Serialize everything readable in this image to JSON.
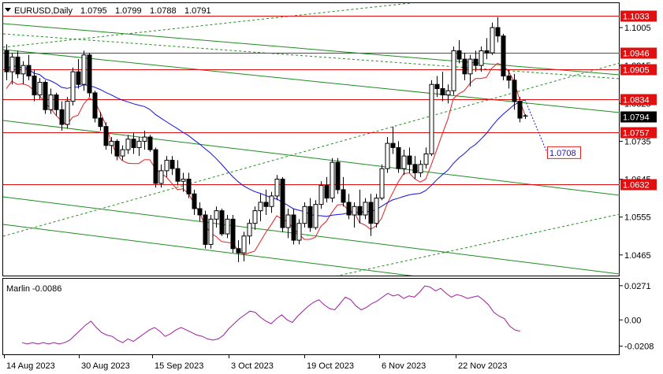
{
  "chart_data": [
    {
      "type": "candlestick",
      "title": "EURUSD,Daily",
      "ohlc": {
        "open": "1.0795",
        "high": "1.0799",
        "low": "1.0788",
        "close": "1.0791"
      },
      "ylim": [
        1.0416,
        1.1063
      ],
      "y_ticks": [
        "1.1005",
        "1.0915",
        "1.0825",
        "1.0735",
        "1.0645",
        "1.0555",
        "1.0465"
      ],
      "x_ticks": [
        "14 Aug 2023",
        "30 Aug 2023",
        "15 Sep 2023",
        "3 Oct 2023",
        "19 Oct 2023",
        "6 Nov 2023",
        "22 Nov 2023"
      ],
      "levels": [
        {
          "label": "1.1033",
          "value": 1.1033
        },
        {
          "label": "1.0946",
          "value": 1.0946
        },
        {
          "label": "1.0905",
          "value": 1.0905
        },
        {
          "label": "1.0834",
          "value": 1.0834
        },
        {
          "label": "1.0757",
          "value": 1.0757
        },
        {
          "label": "1.0632",
          "value": 1.0632
        }
      ],
      "current_price": {
        "label": "1.0794",
        "value": 1.0794
      },
      "ma_value": {
        "label": "1.0708",
        "value": 1.0708
      },
      "candles": [
        [
          1.095,
          1.0965,
          1.088,
          1.09
        ],
        [
          1.09,
          1.0945,
          1.087,
          1.0935
        ],
        [
          1.0935,
          1.095,
          1.0885,
          1.0895
        ],
        [
          1.0895,
          1.0925,
          1.087,
          1.0915
        ],
        [
          1.0915,
          1.094,
          1.088,
          1.089
        ],
        [
          1.089,
          1.0905,
          1.083,
          1.0845
        ],
        [
          1.0845,
          1.0885,
          1.0835,
          1.0875
        ],
        [
          1.0875,
          1.088,
          1.08,
          1.081
        ],
        [
          1.081,
          1.086,
          1.08,
          1.0845
        ],
        [
          1.0845,
          1.085,
          1.0795,
          1.081
        ],
        [
          1.081,
          1.083,
          1.076,
          1.0775
        ],
        [
          1.0775,
          1.084,
          1.0765,
          1.083
        ],
        [
          1.083,
          1.091,
          1.082,
          1.09
        ],
        [
          1.09,
          1.093,
          1.086,
          1.087
        ],
        [
          1.087,
          1.095,
          1.0855,
          1.094
        ],
        [
          1.094,
          1.0945,
          1.084,
          1.085
        ],
        [
          1.085,
          1.0855,
          1.078,
          1.079
        ],
        [
          1.079,
          1.0805,
          1.076,
          1.077
        ],
        [
          1.077,
          1.078,
          1.0715,
          1.0725
        ],
        [
          1.0725,
          1.0745,
          1.0705,
          1.0735
        ],
        [
          1.0735,
          1.074,
          1.069,
          1.07
        ],
        [
          1.07,
          1.0725,
          1.069,
          1.0715
        ],
        [
          1.0715,
          1.075,
          1.0705,
          1.074
        ],
        [
          1.074,
          1.0755,
          1.0705,
          1.072
        ],
        [
          1.072,
          1.0745,
          1.07,
          1.0735
        ],
        [
          1.0735,
          1.076,
          1.0715,
          1.0745
        ],
        [
          1.0745,
          1.075,
          1.071,
          1.0715
        ],
        [
          1.0715,
          1.072,
          1.0625,
          1.0635
        ],
        [
          1.0635,
          1.068,
          1.0625,
          1.0665
        ],
        [
          1.0665,
          1.07,
          1.065,
          1.069
        ],
        [
          1.069,
          1.07,
          1.0655,
          1.067
        ],
        [
          1.067,
          1.069,
          1.063,
          1.064
        ],
        [
          1.064,
          1.066,
          1.0615,
          1.0645
        ],
        [
          1.0645,
          1.066,
          1.06,
          1.061
        ],
        [
          1.061,
          1.062,
          1.056,
          1.0575
        ],
        [
          1.0575,
          1.059,
          1.0545,
          1.056
        ],
        [
          1.056,
          1.057,
          1.048,
          1.049
        ],
        [
          1.049,
          1.056,
          1.048,
          1.055
        ],
        [
          1.055,
          1.058,
          1.053,
          1.057
        ],
        [
          1.057,
          1.0575,
          1.051,
          1.0515
        ],
        [
          1.0515,
          1.056,
          1.0505,
          1.055
        ],
        [
          1.055,
          1.056,
          1.047,
          1.048
        ],
        [
          1.048,
          1.05,
          1.0448,
          1.047
        ],
        [
          1.047,
          1.052,
          1.045,
          1.051
        ],
        [
          1.051,
          1.055,
          1.049,
          1.054
        ],
        [
          1.054,
          1.058,
          1.0525,
          1.057
        ],
        [
          1.057,
          1.061,
          1.0545,
          1.059
        ],
        [
          1.059,
          1.062,
          1.056,
          1.058
        ],
        [
          1.058,
          1.0615,
          1.0565,
          1.0605
        ],
        [
          1.0605,
          1.0655,
          1.0595,
          1.0645
        ],
        [
          1.0645,
          1.065,
          1.052,
          1.053
        ],
        [
          1.053,
          1.0575,
          1.0505,
          1.056
        ],
        [
          1.056,
          1.0575,
          1.049,
          1.05
        ],
        [
          1.05,
          1.055,
          1.049,
          1.054
        ],
        [
          1.054,
          1.059,
          1.053,
          1.058
        ],
        [
          1.058,
          1.06,
          1.052,
          1.053
        ],
        [
          1.053,
          1.0595,
          1.0525,
          1.0585
        ],
        [
          1.0585,
          1.064,
          1.0575,
          1.063
        ],
        [
          1.063,
          1.065,
          1.059,
          1.06
        ],
        [
          1.06,
          1.0695,
          1.059,
          1.0685
        ],
        [
          1.0685,
          1.0695,
          1.061,
          1.062
        ],
        [
          1.062,
          1.065,
          1.058,
          1.059
        ],
        [
          1.059,
          1.061,
          1.055,
          1.056
        ],
        [
          1.056,
          1.059,
          1.053,
          1.058
        ],
        [
          1.058,
          1.062,
          1.054,
          1.056
        ],
        [
          1.056,
          1.06,
          1.055,
          1.059
        ],
        [
          1.059,
          1.061,
          1.051,
          1.054
        ],
        [
          1.054,
          1.061,
          1.053,
          1.06
        ],
        [
          1.06,
          1.068,
          1.0595,
          1.067
        ],
        [
          1.067,
          1.0745,
          1.066,
          1.073
        ],
        [
          1.073,
          1.077,
          1.0705,
          1.072
        ],
        [
          1.072,
          1.0735,
          1.066,
          1.067
        ],
        [
          1.067,
          1.0715,
          1.0655,
          1.07
        ],
        [
          1.07,
          1.072,
          1.066,
          1.068
        ],
        [
          1.068,
          1.07,
          1.0645,
          1.066
        ],
        [
          1.066,
          1.069,
          1.065,
          1.068
        ],
        [
          1.068,
          1.072,
          1.067,
          1.0705
        ],
        [
          1.0705,
          1.088,
          1.07,
          1.087
        ],
        [
          1.087,
          1.089,
          1.084,
          1.086
        ],
        [
          1.086,
          1.09,
          1.083,
          1.0845
        ],
        [
          1.0845,
          1.087,
          1.0825,
          1.0855
        ],
        [
          1.0855,
          1.096,
          1.0845,
          1.095
        ],
        [
          1.095,
          1.0975,
          1.092,
          1.093
        ],
        [
          1.093,
          1.0945,
          1.088,
          1.0895
        ],
        [
          1.0895,
          1.094,
          1.0865,
          1.093
        ],
        [
          1.093,
          1.095,
          1.09,
          1.0915
        ],
        [
          1.0915,
          1.096,
          1.09,
          1.095
        ],
        [
          1.095,
          1.098,
          1.093,
          1.0945
        ],
        [
          1.0945,
          1.1017,
          1.094,
          1.1005
        ],
        [
          1.1005,
          1.103,
          1.097,
          1.0985
        ],
        [
          1.0985,
          1.099,
          1.088,
          1.089
        ],
        [
          1.089,
          1.0905,
          1.086,
          1.088
        ],
        [
          1.088,
          1.0895,
          1.081,
          1.083
        ],
        [
          1.083,
          1.084,
          1.078,
          1.079
        ],
        [
          1.0795,
          1.0799,
          1.0788,
          1.0791
        ]
      ]
    },
    {
      "type": "line",
      "title": "Marlin -0.0086",
      "ylim": [
        -0.026,
        0.032
      ],
      "y_ticks": [
        "0.0271",
        "0.00",
        "-0.0208"
      ],
      "values": [
        -0.018,
        -0.019,
        -0.018,
        -0.019,
        -0.018,
        -0.019,
        -0.018,
        -0.019,
        -0.018,
        -0.016,
        -0.012,
        -0.008,
        -0.004,
        -0.001,
        -0.006,
        -0.01,
        -0.012,
        -0.013,
        -0.016,
        -0.018,
        -0.015,
        -0.017,
        -0.014,
        -0.011,
        -0.008,
        -0.006,
        -0.009,
        -0.013,
        -0.011,
        -0.008,
        -0.006,
        -0.008,
        -0.01,
        -0.012,
        -0.013,
        -0.015,
        -0.016,
        -0.015,
        -0.012,
        -0.007,
        -0.003,
        0.001,
        0.004,
        0.007,
        0.006,
        0.002,
        -0.001,
        -0.003,
        0.001,
        0.004,
        0.0,
        -0.002,
        0.003,
        0.007,
        0.011,
        0.014,
        0.016,
        0.012,
        0.009,
        0.008,
        0.013,
        0.018,
        0.016,
        0.011,
        0.008,
        0.01,
        0.013,
        0.015,
        0.018,
        0.021,
        0.019,
        0.02,
        0.017,
        0.019,
        0.018,
        0.022,
        0.027,
        0.026,
        0.023,
        0.025,
        0.021,
        0.018,
        0.02,
        0.019,
        0.017,
        0.018,
        0.019,
        0.016,
        0.012,
        0.006,
        0.003,
        0.001,
        -0.005,
        -0.008,
        -0.009
      ]
    }
  ]
}
